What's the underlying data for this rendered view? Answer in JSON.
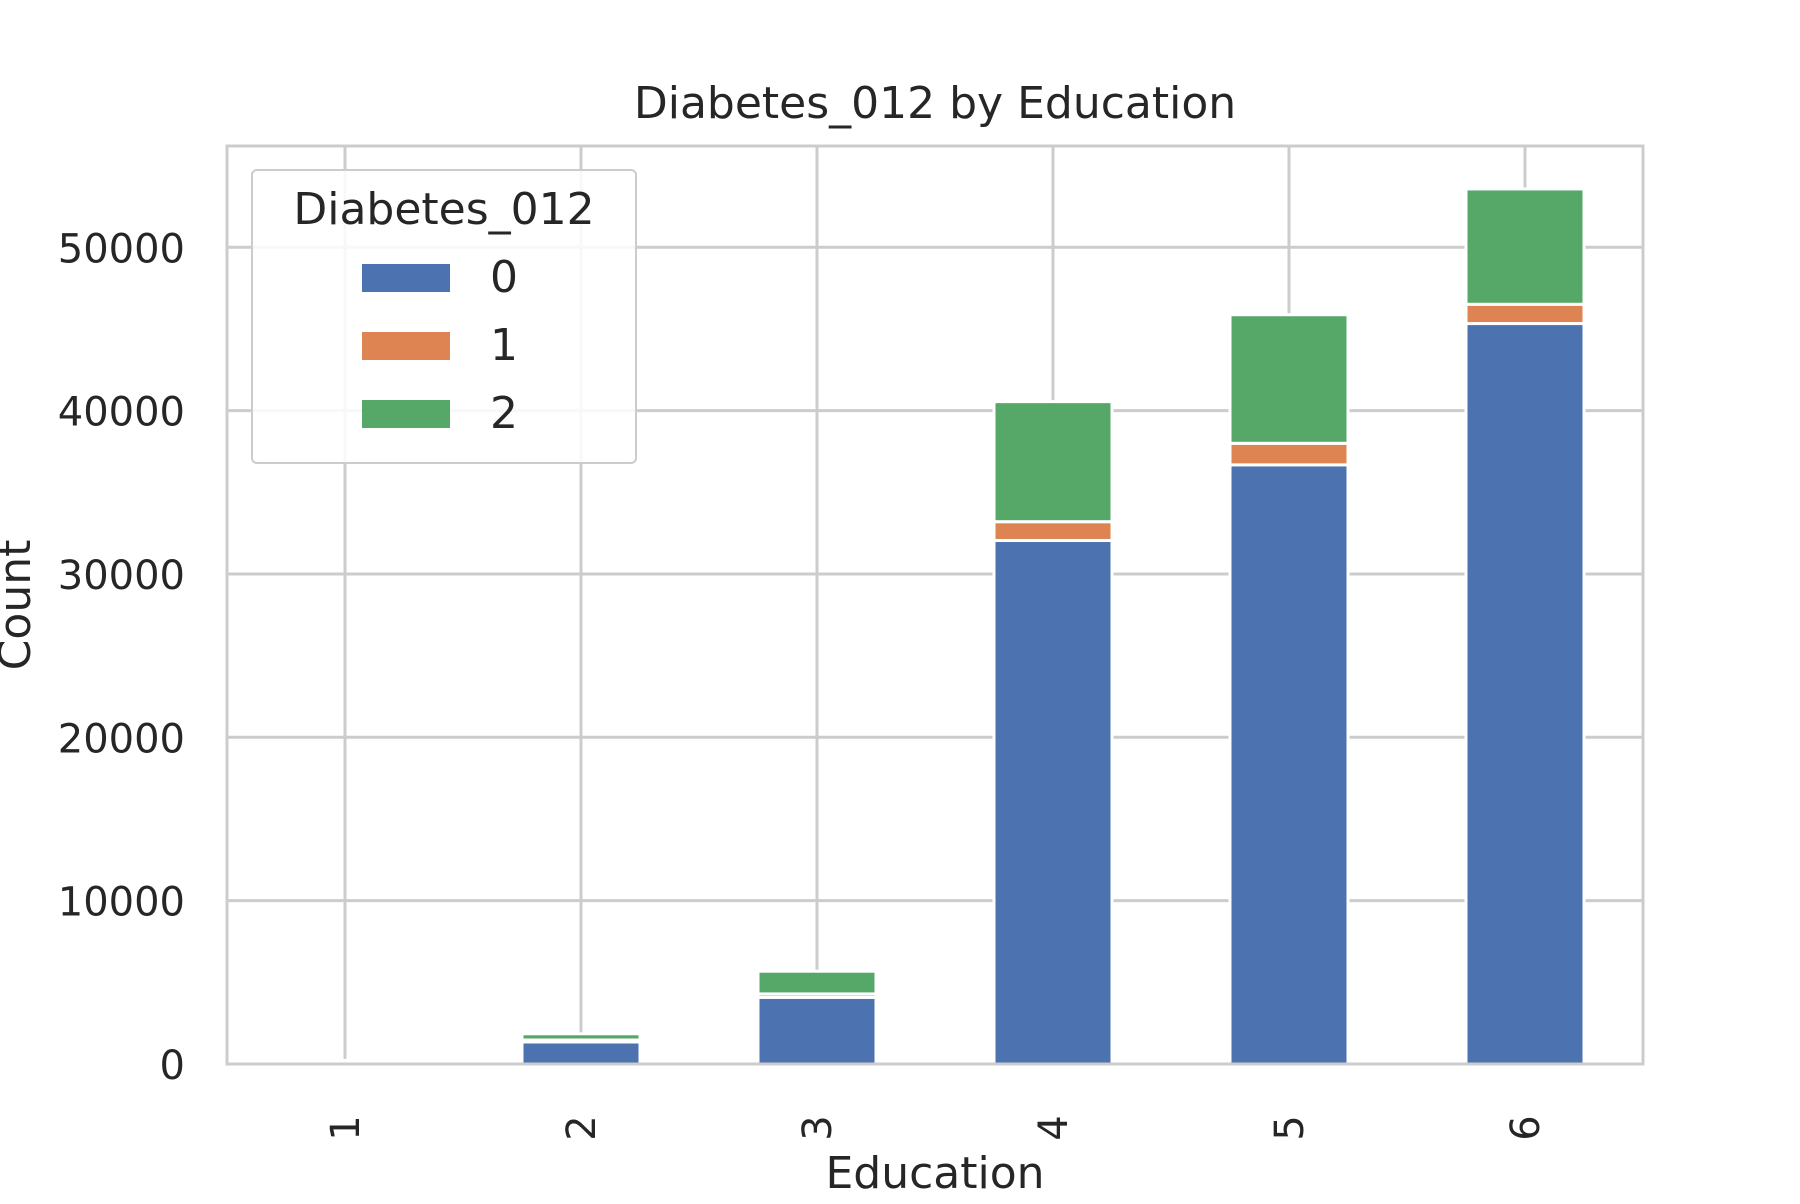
{
  "chart_data": {
    "type": "bar",
    "stacked": true,
    "title": "Diabetes_012 by Education",
    "xlabel": "Education",
    "ylabel": "Count",
    "categories": [
      "1",
      "2",
      "3",
      "4",
      "5",
      "6"
    ],
    "series": [
      {
        "name": "0",
        "color": "#4c72b0",
        "values": [
          150,
          1350,
          4080,
          32050,
          36680,
          45330
        ]
      },
      {
        "name": "1",
        "color": "#dd8452",
        "values": [
          10,
          120,
          210,
          1150,
          1320,
          1180
        ]
      },
      {
        "name": "2",
        "color": "#55a868",
        "values": [
          60,
          380,
          1390,
          7350,
          7870,
          7060
        ]
      }
    ],
    "ylim": [
      0,
      56200
    ],
    "yticks": [
      0,
      10000,
      20000,
      30000,
      40000,
      50000
    ],
    "grid": true,
    "legend": {
      "title": "Diabetes_012",
      "placement": "top-left"
    }
  }
}
